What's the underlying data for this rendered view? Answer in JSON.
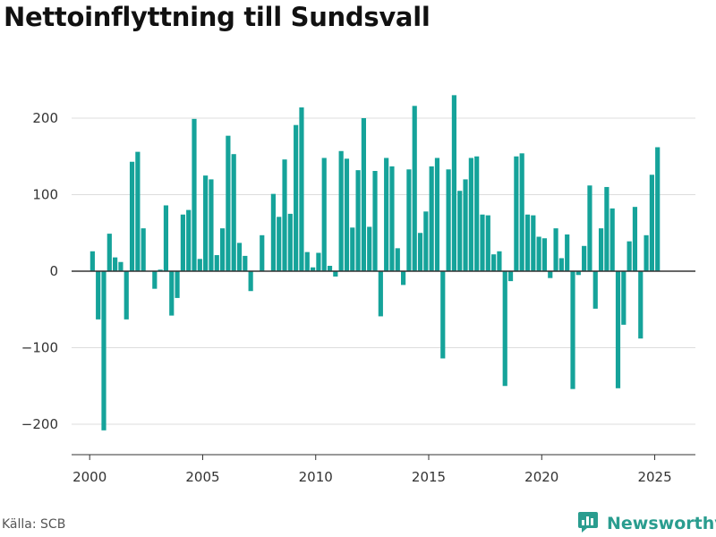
{
  "title": "Nettoinflyttning till Sundsvall",
  "source": "Källa: SCB",
  "brand": {
    "name": "Newsworthy",
    "icon": "newsworthy-logo-icon"
  },
  "colors": {
    "bar": "#15a39a",
    "zero_line": "#333333",
    "grid": "#dddddd",
    "brand": "#2a9d8f"
  },
  "chart_data": {
    "type": "bar",
    "title": "Nettoinflyttning till Sundsvall",
    "xlabel": "",
    "ylabel": "",
    "ylim": [
      -240,
      240
    ],
    "xlim": [
      1999.2,
      2026.8
    ],
    "yticks": [
      -200,
      -100,
      0,
      100,
      200
    ],
    "yticklabels": [
      "−200",
      "−100",
      "0",
      "100",
      "200"
    ],
    "xticks": [
      2000,
      2005,
      2010,
      2015,
      2020,
      2025
    ],
    "xticklabels": [
      "2000",
      "2005",
      "2010",
      "2015",
      "2020",
      "2025"
    ],
    "grid": true,
    "period": "quarterly",
    "start": "2000 Q1",
    "values": [
      26,
      -63,
      -208,
      49,
      18,
      12,
      -63,
      143,
      156,
      56,
      null,
      -23,
      2,
      86,
      -58,
      -35,
      74,
      80,
      199,
      16,
      125,
      120,
      21,
      56,
      177,
      153,
      37,
      20,
      -26,
      null,
      47,
      null,
      101,
      71,
      146,
      75,
      191,
      214,
      25,
      5,
      24,
      148,
      7,
      -7,
      157,
      147,
      57,
      132,
      200,
      58,
      131,
      -59,
      148,
      137,
      30,
      -18,
      133,
      216,
      50,
      78,
      137,
      148,
      -114,
      133,
      230,
      105,
      120,
      148,
      150,
      74,
      73,
      22,
      26,
      -150,
      -13,
      150,
      154,
      74,
      73,
      45,
      43,
      -9,
      56,
      17,
      48,
      -154,
      -5,
      33,
      112,
      -49,
      56,
      110,
      82,
      -153,
      -70,
      39,
      84,
      -88,
      47,
      126,
      162
    ]
  }
}
